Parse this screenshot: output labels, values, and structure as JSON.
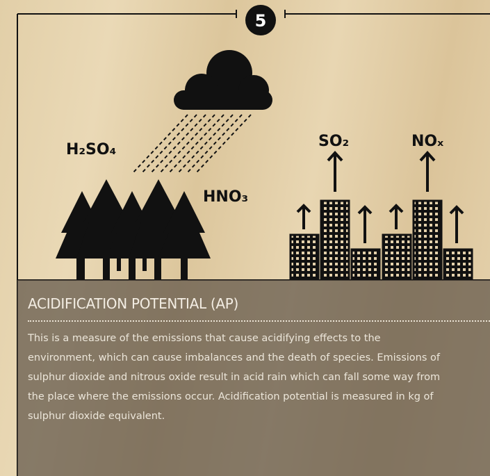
{
  "step": "5",
  "illustration": {
    "cloud_labels": [
      "H₂SO₄",
      "HNO₃"
    ],
    "city_labels": [
      "SO₂",
      "NOₓ"
    ]
  },
  "panel": {
    "title": "ACIDIFICATION POTENTIAL (AP)",
    "body_lines": [
      "This is a measure of the emissions that cause acidifying effects to the",
      "environment, which can cause imbalances and the death of species. Emissions of",
      "sulphur dioxide and nitrous oxide  result in acid rain which can fall some way from",
      "the place where the emissions occur. Acidification potential is measured in kg of",
      "sulphur dioxide equivalent."
    ]
  }
}
